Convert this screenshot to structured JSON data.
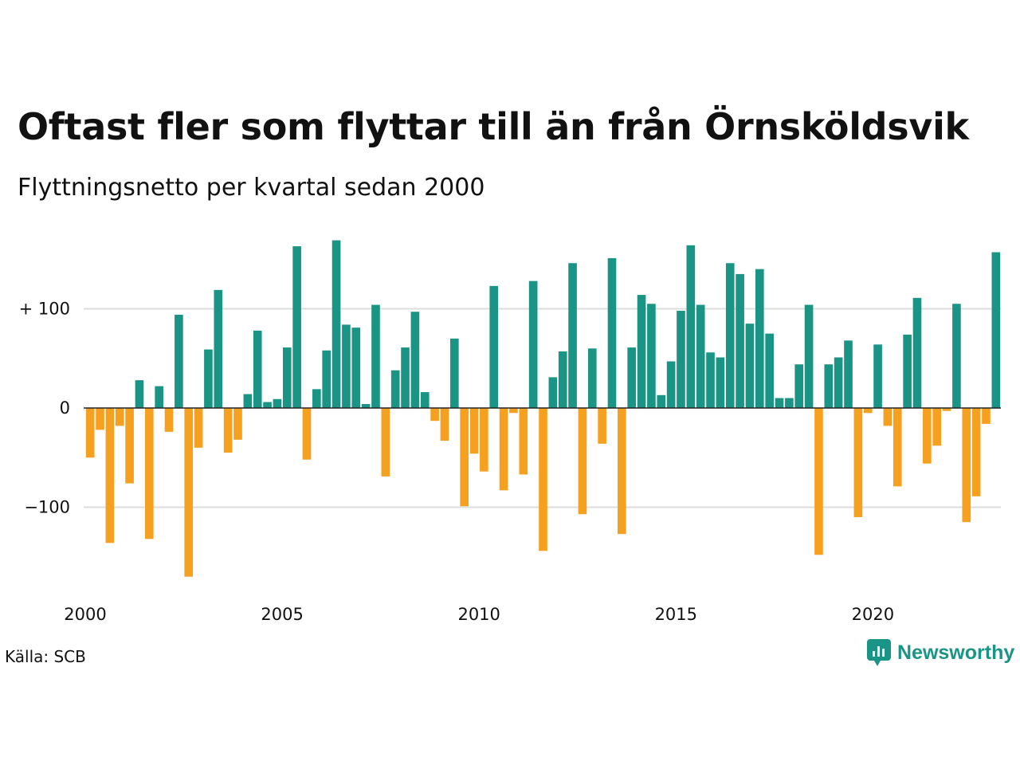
{
  "title": "Oftast fler som flyttar till än från Örnsköldsvik",
  "subtitle": "Flyttningsnetto per kvartal sedan 2000",
  "source": "Källa: SCB",
  "brand": "Newsworthy",
  "colors": {
    "positive": "#1a9484",
    "negative": "#f6a01f",
    "grid": "#dddddd",
    "zero": "#222222",
    "brand": "#1a9484"
  },
  "chart_data": {
    "type": "bar",
    "title": "Oftast fler som flyttar till än från Örnsköldsvik",
    "subtitle": "Flyttningsnetto per kvartal sedan 2000",
    "xlabel": "",
    "ylabel": "",
    "x_tick_labels": [
      "2000",
      "2005",
      "2010",
      "2015",
      "2020"
    ],
    "y_ticks": [
      {
        "value": 100,
        "label": "+ 100"
      },
      {
        "value": 0,
        "label": "0"
      },
      {
        "value": -100,
        "label": "−100"
      }
    ],
    "ylim": [
      -180,
      175
    ],
    "grid": true,
    "start_year": 2000,
    "values": [
      -50,
      -22,
      -136,
      -18,
      -76,
      28,
      -132,
      22,
      -24,
      94,
      -170,
      -40,
      59,
      119,
      -45,
      -32,
      14,
      78,
      6,
      9,
      61,
      163,
      -52,
      19,
      58,
      169,
      84,
      81,
      4,
      104,
      -69,
      38,
      61,
      97,
      16,
      -13,
      -33,
      70,
      -99,
      -46,
      -64,
      123,
      -83,
      -5,
      -67,
      128,
      -144,
      31,
      57,
      146,
      -107,
      60,
      -36,
      151,
      -127,
      61,
      114,
      105,
      13,
      47,
      98,
      164,
      104,
      56,
      51,
      146,
      135,
      85,
      140,
      75,
      10,
      10,
      44,
      104,
      -148,
      44,
      51,
      68,
      -110,
      -5,
      64,
      -18,
      -79,
      74,
      111,
      -56,
      -38,
      -3,
      105,
      -115,
      -89,
      -16,
      157
    ]
  }
}
